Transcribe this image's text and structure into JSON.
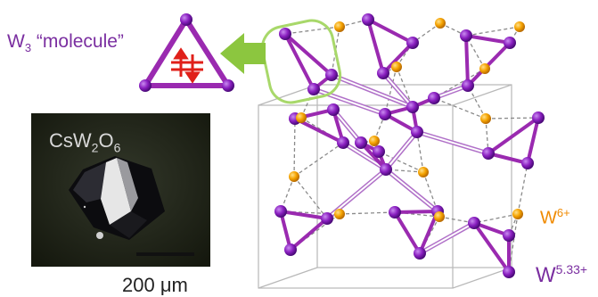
{
  "labels": {
    "w3_molecule": {
      "prefix": "W",
      "sub": "3",
      "rest": " “molecule”"
    },
    "compound": {
      "a": "CsW",
      "b": "2",
      "c": "O",
      "d": "6"
    },
    "scale": "200 μm",
    "w6": {
      "base": "W",
      "sup": "6+"
    },
    "w533": {
      "base": "W",
      "sup": "5.33+"
    }
  },
  "colors": {
    "tungsten_mixed": "#8a1fc0",
    "tungsten_6plus": "#f5a300",
    "bond": "#9a2ab0",
    "arrow": "#8cc63f",
    "highlight": "#a8d86a",
    "spin": "#e0201a"
  }
}
